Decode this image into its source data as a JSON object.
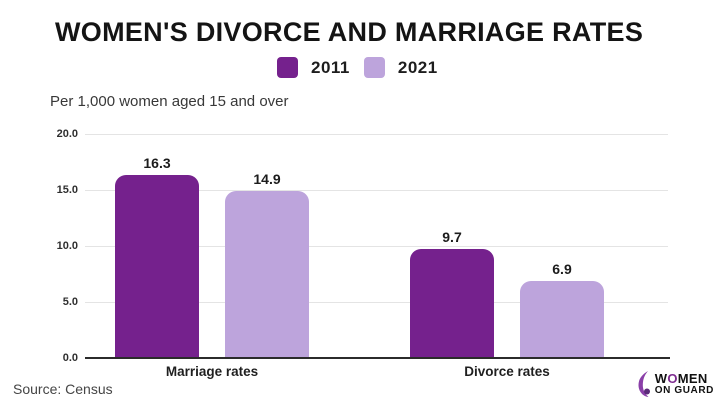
{
  "title": "WOMEN'S DIVORCE AND MARRIAGE RATES",
  "subtitle": "Per 1,000 women aged 15 and over",
  "source": "Source: Census",
  "colors": {
    "series_2011": "#75218d",
    "series_2021": "#bda4dc",
    "grid": "#e4e4e4",
    "axis": "#2b2b2b",
    "logo_accent": "#8a3fa8"
  },
  "legend": [
    {
      "label": "2011",
      "color": "#75218d"
    },
    {
      "label": "2021",
      "color": "#bda4dc"
    }
  ],
  "chart_data": {
    "type": "bar",
    "title": "WOMEN'S DIVORCE AND MARRIAGE RATES",
    "subtitle": "Per 1,000 women aged 15 and over",
    "categories": [
      "Marriage rates",
      "Divorce rates"
    ],
    "series": [
      {
        "name": "2011",
        "color": "#75218d",
        "values": [
          16.3,
          9.7
        ]
      },
      {
        "name": "2021",
        "color": "#bda4dc",
        "values": [
          14.9,
          6.9
        ]
      }
    ],
    "value_labels": [
      [
        "16.3",
        "14.9"
      ],
      [
        "9.7",
        "6.9"
      ]
    ],
    "xlabel": "",
    "ylabel": "Per 1,000 women aged 15 and over",
    "ylim": [
      0,
      20
    ],
    "yticks": [
      "20.0",
      "15.0",
      "10.0",
      "5.0",
      "0.0"
    ],
    "grid": true,
    "legend_position": "top"
  },
  "logo": {
    "line1_pre": "W",
    "line1_o": "O",
    "line1_post": "MEN",
    "line2": "ON GUARD",
    "icon": "woman-silhouette-icon"
  }
}
